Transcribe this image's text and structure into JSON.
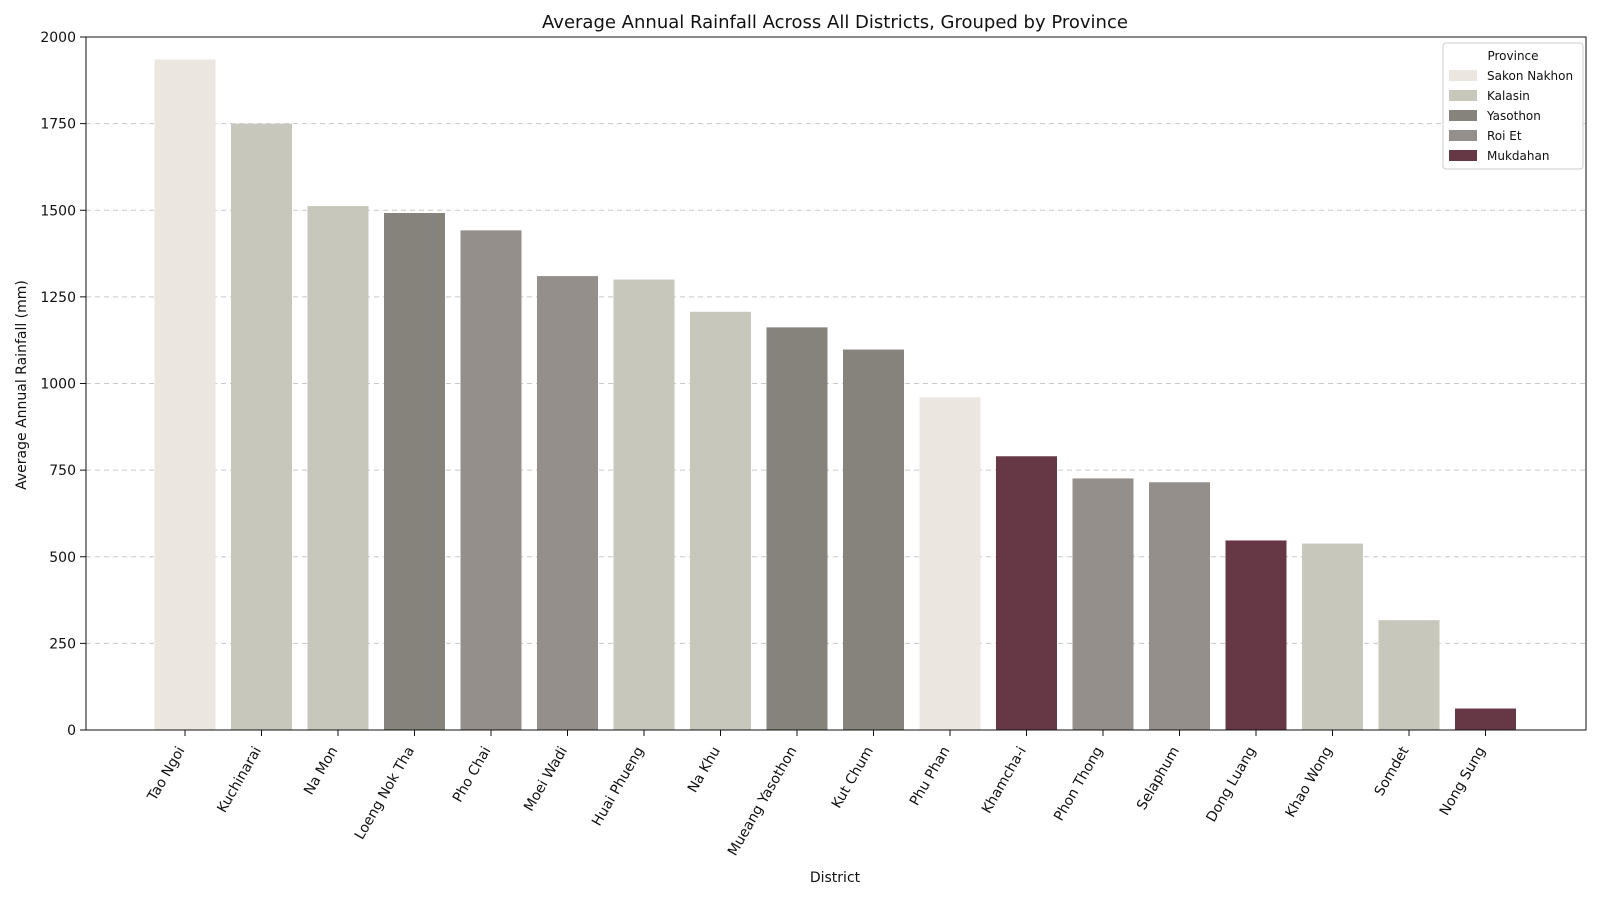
{
  "chart_data": {
    "type": "bar",
    "title": "Average Annual Rainfall Across All Districts, Grouped by Province",
    "xlabel": "District",
    "ylabel": "Average Annual Rainfall (mm)",
    "ylim": [
      0,
      2000
    ],
    "yticks": [
      0,
      250,
      500,
      750,
      1000,
      1250,
      1500,
      1750,
      2000
    ],
    "grid": "horizontal dashed",
    "legend": {
      "title": "Province",
      "placement": "top-right",
      "entries": [
        {
          "name": "Sakon Nakhon",
          "color": "#ebe6e0"
        },
        {
          "name": "Kalasin",
          "color": "#c7c7bb"
        },
        {
          "name": "Yasothon",
          "color": "#86837c"
        },
        {
          "name": "Roi Et",
          "color": "#948f8a"
        },
        {
          "name": "Mukdahan",
          "color": "#663845"
        }
      ]
    },
    "bars": [
      {
        "district": "Tao Ngoi",
        "province": "Sakon Nakhon",
        "value": 1935
      },
      {
        "district": "Kuchinarai",
        "province": "Kalasin",
        "value": 1750
      },
      {
        "district": "Na Mon",
        "province": "Kalasin",
        "value": 1512
      },
      {
        "district": "Loeng Nok Tha",
        "province": "Yasothon",
        "value": 1492
      },
      {
        "district": "Pho Chai",
        "province": "Roi Et",
        "value": 1442
      },
      {
        "district": "Moei Wadi",
        "province": "Roi Et",
        "value": 1310
      },
      {
        "district": "Huai Phueng",
        "province": "Kalasin",
        "value": 1300
      },
      {
        "district": "Na Khu",
        "province": "Kalasin",
        "value": 1207
      },
      {
        "district": "Mueang Yasothon",
        "province": "Yasothon",
        "value": 1162
      },
      {
        "district": "Kut Chum",
        "province": "Yasothon",
        "value": 1098
      },
      {
        "district": "Phu Phan",
        "province": "Sakon Nakhon",
        "value": 960
      },
      {
        "district": "Khamcha-i",
        "province": "Mukdahan",
        "value": 790
      },
      {
        "district": "Phon Thong",
        "province": "Roi Et",
        "value": 726
      },
      {
        "district": "Selaphum",
        "province": "Roi Et",
        "value": 715
      },
      {
        "district": "Dong Luang",
        "province": "Mukdahan",
        "value": 547
      },
      {
        "district": "Khao Wong",
        "province": "Kalasin",
        "value": 538
      },
      {
        "district": "Somdet",
        "province": "Kalasin",
        "value": 317
      },
      {
        "district": "Nong Sung",
        "province": "Mukdahan",
        "value": 62
      }
    ]
  }
}
